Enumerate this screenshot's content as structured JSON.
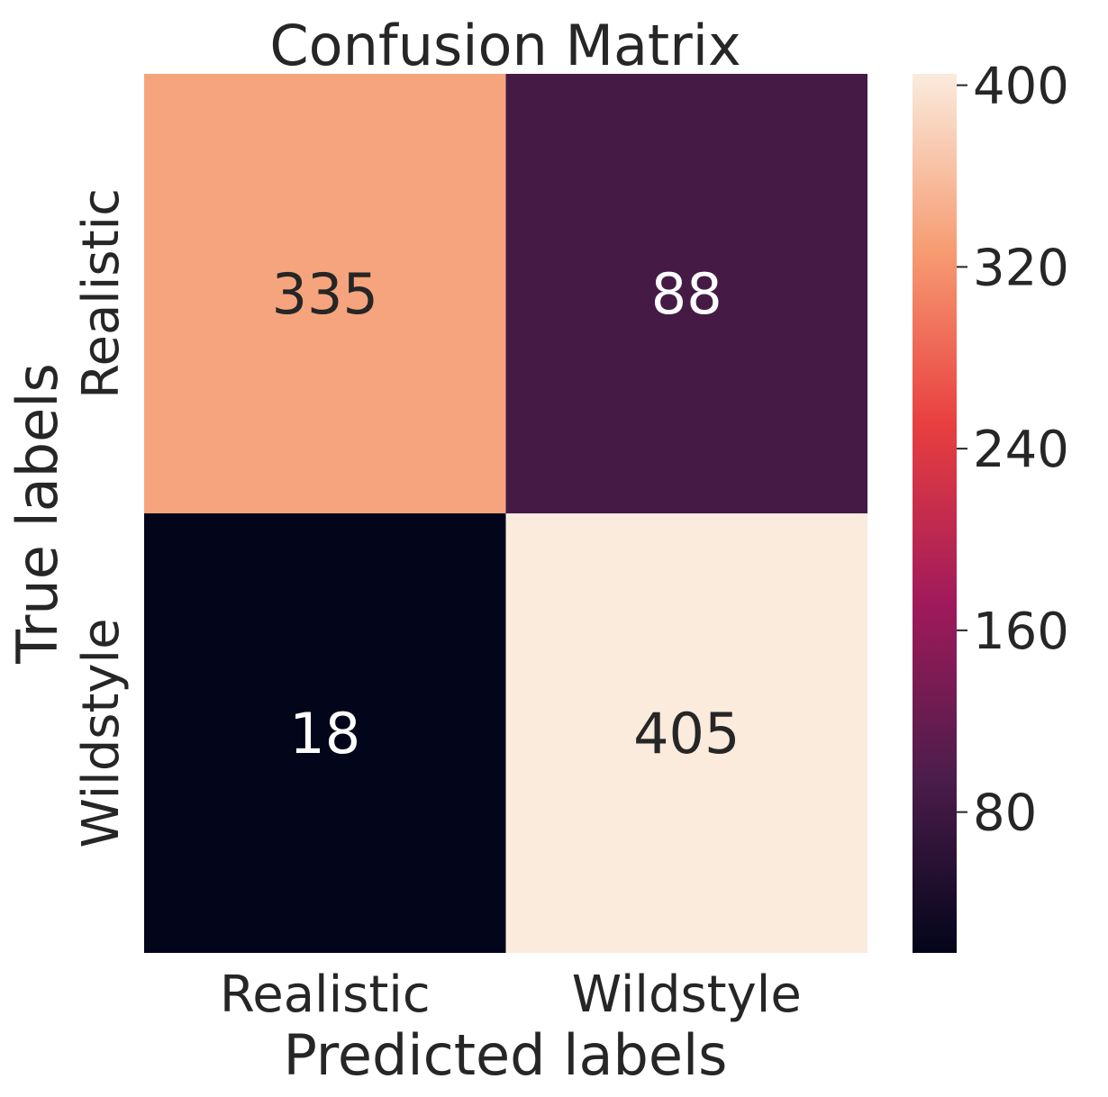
{
  "chart_data": {
    "type": "heatmap",
    "title": "Confusion Matrix",
    "xlabel": "Predicted labels",
    "ylabel": "True labels",
    "x_categories": [
      "Realistic",
      "Wildstyle"
    ],
    "y_categories": [
      "Realistic",
      "Wildstyle"
    ],
    "values": [
      [
        335,
        88
      ],
      [
        18,
        405
      ]
    ],
    "colorbar": {
      "min": 18,
      "max": 405,
      "ticks": [
        80,
        160,
        240,
        320,
        400
      ],
      "colormap": "rocket"
    },
    "colormap_stops": [
      "#03051a",
      "#4c1d4b",
      "#a11a5b",
      "#e83f3f",
      "#f69c73",
      "#faebdd"
    ]
  }
}
